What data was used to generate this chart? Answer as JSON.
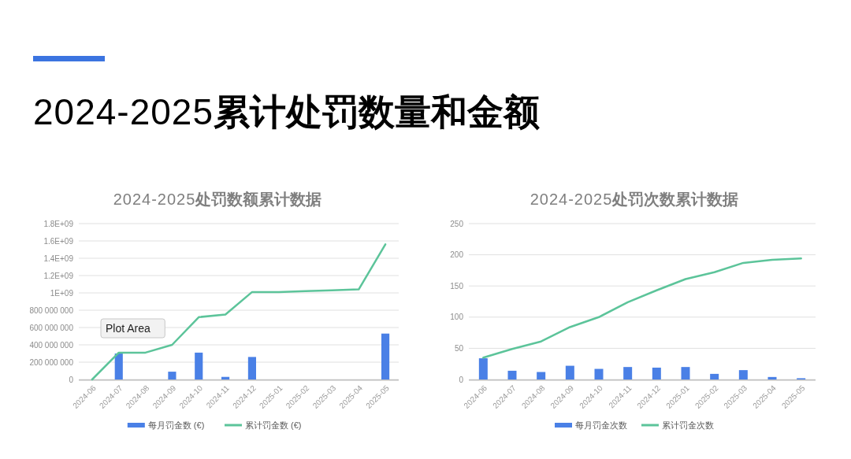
{
  "chart_data": [
    {
      "type": "other",
      "title": "2024-2025累计处罚数量和金额"
    },
    {
      "type": "bar",
      "title": "2024-2025处罚数额累计数据",
      "categories": [
        "2024-06",
        "2024-07",
        "2024-08",
        "2024-09",
        "2024-10",
        "2024-11",
        "2024-12",
        "2025-01",
        "2025-02",
        "2025-03",
        "2025-04",
        "2025-05"
      ],
      "series": [
        {
          "name": "每月罚金数 (€)",
          "type": "bar",
          "color": "#4a80e6",
          "values": [
            0,
            300000000,
            0,
            90000000,
            310000000,
            30000000,
            260000000,
            0,
            0,
            0,
            0,
            530000000
          ]
        },
        {
          "name": "累计罚金数 (€)",
          "type": "line",
          "color": "#5cc49a",
          "values": [
            0,
            310000000,
            310000000,
            400000000,
            720000000,
            750000000,
            1010000000,
            1010000000,
            1020000000,
            1030000000,
            1040000000,
            1560000000
          ]
        }
      ],
      "ylim": [
        0,
        1800000000
      ],
      "yticks": [
        0,
        {
          "value": 200000000,
          "label": "200 000 000"
        },
        {
          "value": 400000000,
          "label": "400 000 000"
        },
        {
          "value": 600000000,
          "label": "600 000 000"
        },
        {
          "value": 800000000,
          "label": "800 000 000"
        },
        {
          "value": 1000000000,
          "label": "1E+09"
        },
        {
          "value": 1200000000,
          "label": "1.2E+09"
        },
        {
          "value": 1400000000,
          "label": "1.4E+09"
        },
        {
          "value": 1600000000,
          "label": "1.6E+09"
        },
        {
          "value": 1800000000,
          "label": "1.8E+09"
        }
      ],
      "grid": "y",
      "legend": "bottom",
      "annotations": [
        "Plot Area"
      ]
    },
    {
      "type": "bar",
      "title": "2024-2025处罚次数累计数据",
      "categories": [
        "2024-06",
        "2024-07",
        "2024-08",
        "2024-09",
        "2024-10",
        "2024-11",
        "2024-12",
        "2025-01",
        "2025-02",
        "2025-03",
        "2025-04",
        "2025-05"
      ],
      "series": [
        {
          "name": "每月罚金次数",
          "type": "bar",
          "color": "#4a80e6",
          "values": [
            34,
            14,
            12,
            22,
            17,
            20,
            19,
            20,
            9,
            15,
            4,
            2
          ]
        },
        {
          "name": "累计罚金次数",
          "type": "line",
          "color": "#5cc49a",
          "values": [
            35,
            49,
            61,
            84,
            100,
            124,
            143,
            161,
            172,
            187,
            192,
            194
          ]
        }
      ],
      "ylim": [
        0,
        250
      ],
      "yticks": [
        0,
        50,
        100,
        150,
        200,
        250
      ],
      "grid": "y",
      "legend": "bottom"
    }
  ]
}
